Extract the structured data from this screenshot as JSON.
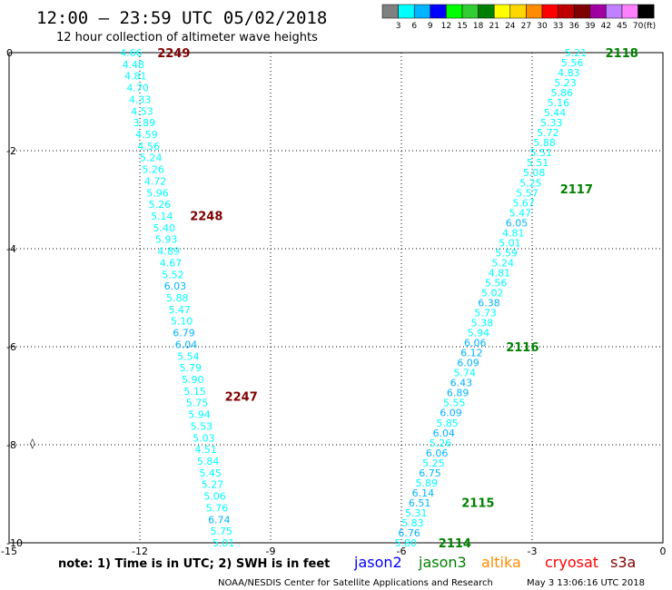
{
  "header": {
    "title": "12:00 – 23:59 UTC 05/02/2018",
    "subtitle": "12 hour collection of altimeter wave heights"
  },
  "legend": {
    "colors": [
      "#808080",
      "#00ffff",
      "#00b4ff",
      "#0000ff",
      "#00ff00",
      "#32cd32",
      "#008000",
      "#ffff00",
      "#ffd700",
      "#ff8c00",
      "#ff0000",
      "#c00000",
      "#800000",
      "#a000a0",
      "#c080ff",
      "#ff80ff",
      "#000000"
    ],
    "labels": [
      "3",
      "6",
      "9",
      "12",
      "15",
      "18",
      "21",
      "24",
      "27",
      "30",
      "33",
      "36",
      "39",
      "42",
      "45",
      "70"
    ],
    "unit": "(ft)"
  },
  "axes": {
    "x": {
      "range": [
        -15,
        0
      ],
      "ticks": [
        "-15",
        "-12",
        "-9",
        "-6",
        "-3",
        "0"
      ]
    },
    "y": {
      "range": [
        0,
        -10
      ],
      "ticks": [
        "0",
        "-2",
        "-4",
        "-6",
        "-8",
        "-10"
      ]
    }
  },
  "tracks": [
    {
      "name": "track-left",
      "lon_start": -12.2,
      "lon_end": -10.08,
      "values": [
        "4.66",
        "4.48",
        "4.81",
        "4.70",
        "4.33",
        "4.53",
        "3.89",
        "4.59",
        "4.56",
        "5.24",
        "5.26",
        "4.72",
        "5.96",
        "5.26",
        "5.14",
        "5.40",
        "5.93",
        "4.89",
        "4.67",
        "5.52",
        "6.03",
        "5.88",
        "5.47",
        "5.10",
        "6.79",
        "6.04",
        "5.54",
        "5.79",
        "5.90",
        "5.15",
        "5.75",
        "5.94",
        "5.53",
        "5.03",
        "4.51",
        "5.84",
        "5.45",
        "5.27",
        "5.06",
        "5.76",
        "6.74",
        "5.75",
        "5.01"
      ],
      "passes": [
        {
          "label": "2249",
          "lat": 0.0,
          "lon": -11.6
        },
        {
          "label": "2248",
          "lat": -3.32,
          "lon": -10.85
        },
        {
          "label": "2247",
          "lat": -7.01,
          "lon": -10.05
        }
      ]
    },
    {
      "name": "track-right",
      "lon_start": -2.0,
      "lon_end": -5.9,
      "values": [
        "5.21",
        "5.56",
        "4.83",
        "5.23",
        "5.86",
        "5.16",
        "5.44",
        "5.33",
        "5.72",
        "5.88",
        "5.51",
        "5.51",
        "5.08",
        "5.25",
        "5.57",
        "5.67",
        "5.47",
        "6.05",
        "4.81",
        "5.01",
        "5.59",
        "5.24",
        "4.81",
        "5.56",
        "5.02",
        "6.38",
        "5.73",
        "5.38",
        "5.94",
        "6.06",
        "6.12",
        "6.09",
        "5.74",
        "6.43",
        "6.89",
        "5.55",
        "6.09",
        "5.85",
        "6.04",
        "5.26",
        "6.06",
        "5.25",
        "6.75",
        "5.89",
        "6.14",
        "6.51",
        "5.31",
        "5.83",
        "6.76",
        "5.80"
      ],
      "passes": [
        {
          "label": "2118",
          "lat": 0.0,
          "lon": -1.32
        },
        {
          "label": "2117",
          "lat": -2.78,
          "lon": -2.36
        },
        {
          "label": "2116",
          "lat": -6.0,
          "lon": -3.6
        },
        {
          "label": "2115",
          "lat": -9.18,
          "lon": -4.62
        },
        {
          "label": "2114",
          "lat": -10.0,
          "lon": -5.15
        }
      ]
    }
  ],
  "note": "note: 1) Time is in UTC; 2) SWH is in feet",
  "satellites": [
    {
      "name": "jason2",
      "color": "#0000ff"
    },
    {
      "name": "jason3",
      "color": "#008000"
    },
    {
      "name": "altika",
      "color": "#ff8c00"
    },
    {
      "name": "cryosat",
      "color": "#ff0000"
    },
    {
      "name": "s3a",
      "color": "#800000"
    }
  ],
  "credit": "NOAA/NESDIS Center for Satellite Applications and Research",
  "timestamp": "May  3 13:06:16 UTC 2018"
}
